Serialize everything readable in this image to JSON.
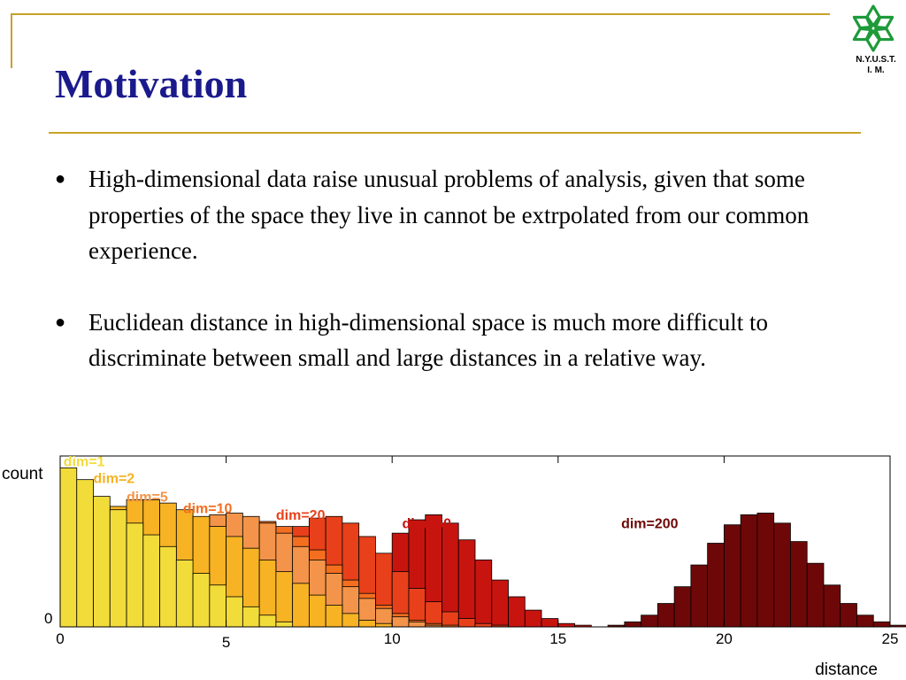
{
  "slide": {
    "title": "Motivation",
    "logo_text_line1": "N.Y.U.S.T.",
    "logo_text_line2": "I. M.",
    "bullets": [
      "High-dimensional data raise unusual problems of  analysis, given that some properties of the space they live in cannot be extrpolated from our common experience.",
      "Euclidean distance in high-dimensional space is much more difficult to discriminate between small and large distances in a relative way."
    ]
  },
  "colors": {
    "title": "#1a1a8c",
    "rule": "#c9a227",
    "logo": "#1e9a3a"
  },
  "chart_data": {
    "type": "bar",
    "xlabel": "distance",
    "ylabel": "count",
    "xlim": [
      0,
      25
    ],
    "x_ticks": [
      "0",
      "5",
      "10",
      "15",
      "20",
      "25"
    ],
    "y_ticks": [
      "0"
    ],
    "grid": false,
    "bin_width": 0.5,
    "series": [
      {
        "name": "dim=1",
        "color": "#f2dc3a",
        "start": 0,
        "values": [
          95,
          88,
          78,
          70,
          62,
          55,
          48,
          40,
          32,
          25,
          18,
          12,
          7,
          3
        ]
      },
      {
        "name": "dim=2",
        "color": "#f7b323",
        "start": 0,
        "values": [
          40,
          55,
          65,
          72,
          76,
          76,
          74,
          70,
          66,
          60,
          54,
          47,
          40,
          33,
          26,
          19,
          13,
          8,
          4,
          2
        ]
      },
      {
        "name": "dim=5",
        "color": "#f3944a",
        "start": 0,
        "values": [
          2,
          6,
          12,
          20,
          30,
          40,
          50,
          58,
          64,
          67,
          68,
          66,
          62,
          56,
          48,
          40,
          32,
          24,
          17,
          11,
          6,
          3,
          1
        ]
      },
      {
        "name": "dim=10",
        "color": "#f46e1f",
        "start": 1,
        "values": [
          1,
          3,
          7,
          13,
          21,
          31,
          42,
          52,
          59,
          63,
          63,
          60,
          54,
          46,
          37,
          28,
          20,
          13,
          8,
          4,
          2,
          1
        ]
      },
      {
        "name": "dim=20",
        "color": "#e8401a",
        "start": 3,
        "values": [
          1,
          2,
          5,
          10,
          17,
          27,
          39,
          51,
          60,
          65,
          66,
          62,
          54,
          44,
          33,
          23,
          15,
          9,
          5,
          2,
          1
        ]
      },
      {
        "name": "dim=50",
        "color": "#c8140f",
        "start": 7,
        "values": [
          1,
          3,
          8,
          16,
          28,
          42,
          56,
          64,
          67,
          62,
          52,
          40,
          28,
          18,
          10,
          5,
          2,
          1
        ]
      },
      {
        "name": "dim=200",
        "color": "#6e0808",
        "start": 16.5,
        "values": [
          1,
          3,
          7,
          14,
          24,
          37,
          50,
          61,
          67,
          68,
          62,
          51,
          38,
          25,
          14,
          7,
          3,
          1
        ]
      }
    ]
  }
}
